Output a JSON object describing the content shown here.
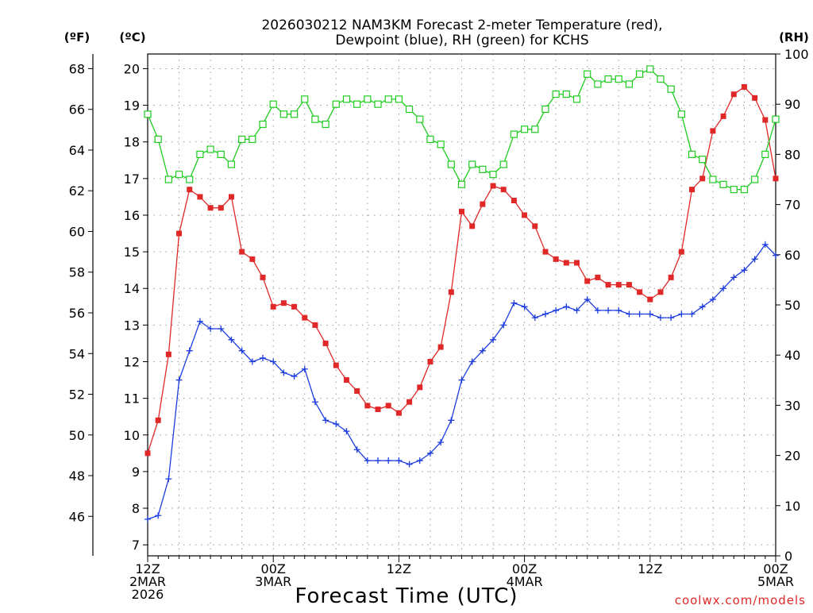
{
  "chart_data": {
    "type": "line",
    "title_line1": "2026030212 NAM3KM Forecast 2-meter Temperature (red),",
    "title_line2": "Dewpoint (blue), RH (green) for KCHS",
    "xlabel": "Forecast Time (UTC)",
    "credit": "coolwx.com/models",
    "units": {
      "fahrenheit": "(ºF)",
      "celsius": "(ºC)",
      "rh": "(RH)"
    },
    "x_range_hours": [
      0,
      60
    ],
    "x_ticks": [
      {
        "hour": 0,
        "lines": [
          "12Z",
          "2MAR",
          "2026"
        ]
      },
      {
        "hour": 12,
        "lines": [
          "00Z",
          "3MAR"
        ]
      },
      {
        "hour": 24,
        "lines": [
          "12Z"
        ]
      },
      {
        "hour": 36,
        "lines": [
          "00Z",
          "4MAR"
        ]
      },
      {
        "hour": 48,
        "lines": [
          "12Z"
        ]
      },
      {
        "hour": 60,
        "lines": [
          "00Z",
          "5MAR"
        ]
      }
    ],
    "celsius_ticks": [
      "7",
      "8",
      "9",
      "10",
      "11",
      "12",
      "13",
      "14",
      "15",
      "16",
      "17",
      "18",
      "19",
      "20"
    ],
    "fahrenheit_ticks": [
      "46",
      "48",
      "50",
      "52",
      "54",
      "56",
      "58",
      "60",
      "62",
      "64",
      "66",
      "68"
    ],
    "rh_ticks": [
      "0",
      "10",
      "20",
      "30",
      "40",
      "50",
      "60",
      "70",
      "80",
      "90",
      "100"
    ],
    "celsius_range": [
      6.7,
      20.4
    ],
    "rh_range": [
      0,
      100
    ],
    "colors": {
      "temperature": "#e02828",
      "dewpoint": "#1c3ce0",
      "rh": "#1ecc1e",
      "grid": "#9a9a9a",
      "credit": "#e02828"
    },
    "series": [
      {
        "name": "Temperature",
        "unit": "C",
        "marker": "filled-square",
        "values": [
          9.5,
          10.4,
          12.2,
          15.5,
          16.7,
          16.5,
          16.2,
          16.2,
          16.5,
          15.0,
          14.8,
          14.3,
          13.5,
          13.6,
          13.5,
          13.2,
          13.0,
          12.5,
          11.9,
          11.5,
          11.2,
          10.8,
          10.7,
          10.8,
          10.6,
          10.9,
          11.3,
          12.0,
          12.4,
          13.9,
          16.1,
          15.7,
          16.3,
          16.8,
          16.7,
          16.4,
          16.0,
          15.7,
          15.0,
          14.8,
          14.7,
          14.7,
          14.2,
          14.3,
          14.1,
          14.1,
          14.1,
          13.9,
          13.7,
          13.9,
          14.3,
          15.0,
          16.7,
          17.0,
          18.3,
          18.7,
          19.3,
          19.5,
          19.2,
          18.6,
          17.0
        ]
      },
      {
        "name": "Dewpoint",
        "unit": "C",
        "marker": "plus",
        "values": [
          7.7,
          7.8,
          8.8,
          11.5,
          12.3,
          13.1,
          12.9,
          12.9,
          12.6,
          12.3,
          12.0,
          12.1,
          12.0,
          11.7,
          11.6,
          11.8,
          10.9,
          10.4,
          10.3,
          10.1,
          9.6,
          9.3,
          9.3,
          9.3,
          9.3,
          9.2,
          9.3,
          9.5,
          9.8,
          10.4,
          11.5,
          12.0,
          12.3,
          12.6,
          13.0,
          13.6,
          13.5,
          13.2,
          13.3,
          13.4,
          13.5,
          13.4,
          13.7,
          13.4,
          13.4,
          13.4,
          13.3,
          13.3,
          13.3,
          13.2,
          13.2,
          13.3,
          13.3,
          13.5,
          13.7,
          14.0,
          14.3,
          14.5,
          14.8,
          15.2,
          14.9
        ]
      },
      {
        "name": "RH",
        "unit": "%",
        "marker": "open-square",
        "values": [
          88,
          83,
          75,
          76,
          75,
          80,
          81,
          80,
          78,
          83,
          83,
          86,
          90,
          88,
          88,
          91,
          87,
          86,
          90,
          91,
          90,
          91,
          90,
          91,
          91,
          89,
          87,
          83,
          82,
          78,
          74,
          78,
          77,
          76,
          78,
          84,
          85,
          85,
          89,
          92,
          92,
          91,
          96,
          94,
          95,
          95,
          94,
          96,
          97,
          95,
          93,
          88,
          80,
          79,
          75,
          74,
          73,
          73,
          75,
          80,
          87
        ]
      }
    ]
  }
}
